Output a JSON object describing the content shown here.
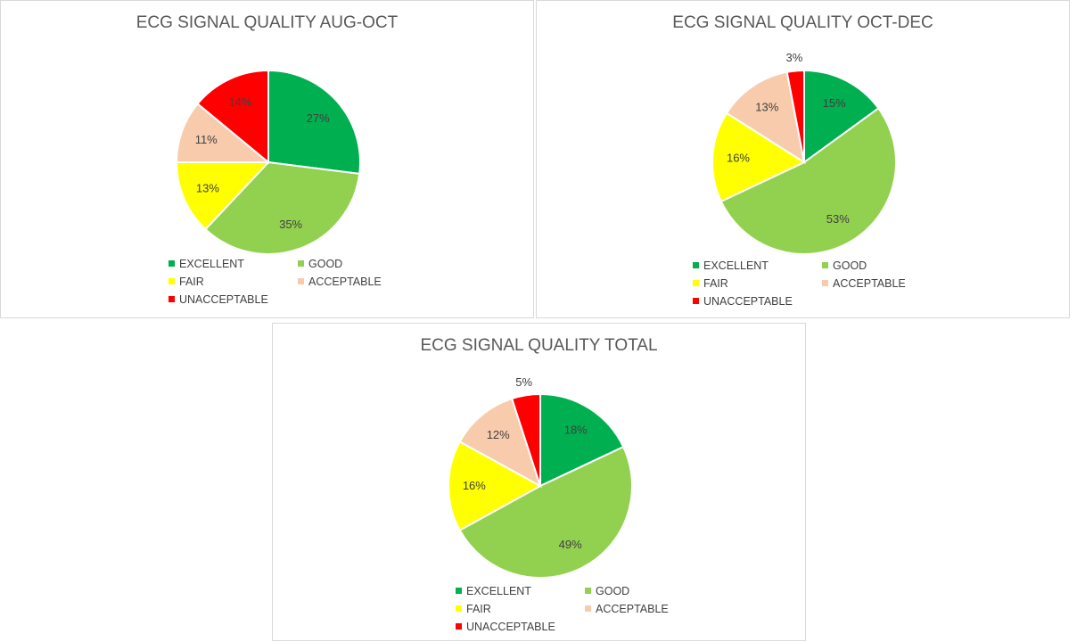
{
  "categories": [
    "EXCELLENT",
    "GOOD",
    "FAIR",
    "ACCEPTABLE",
    "UNACCEPTABLE"
  ],
  "colors": {
    "EXCELLENT": "#00B050",
    "GOOD": "#92D050",
    "FAIR": "#FFFF00",
    "ACCEPTABLE": "#F8CBAD",
    "UNACCEPTABLE": "#FF0000"
  },
  "chart_data": [
    {
      "type": "pie",
      "title": "ECG SIGNAL QUALITY AUG-OCT",
      "categories": [
        "EXCELLENT",
        "GOOD",
        "FAIR",
        "ACCEPTABLE",
        "UNACCEPTABLE"
      ],
      "values": [
        27,
        35,
        13,
        11,
        14
      ],
      "labels": [
        "27%",
        "35%",
        "13%",
        "11%",
        "14%"
      ],
      "legend": "bottom"
    },
    {
      "type": "pie",
      "title": "ECG SIGNAL QUALITY OCT-DEC",
      "categories": [
        "EXCELLENT",
        "GOOD",
        "FAIR",
        "ACCEPTABLE",
        "UNACCEPTABLE"
      ],
      "values": [
        15,
        53,
        16,
        13,
        3
      ],
      "labels": [
        "15%",
        "53%",
        "16%",
        "13%",
        "3%"
      ],
      "legend": "bottom"
    },
    {
      "type": "pie",
      "title": "ECG SIGNAL QUALITY TOTAL",
      "categories": [
        "EXCELLENT",
        "GOOD",
        "FAIR",
        "ACCEPTABLE",
        "UNACCEPTABLE"
      ],
      "values": [
        18,
        49,
        16,
        12,
        5
      ],
      "labels": [
        "18%",
        "49%",
        "16%",
        "12%",
        "5%"
      ],
      "legend": "bottom"
    }
  ]
}
